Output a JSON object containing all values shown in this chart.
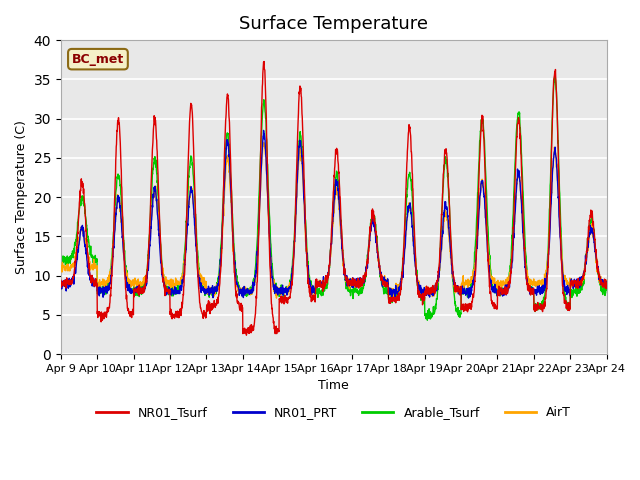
{
  "title": "Surface Temperature",
  "ylabel": "Surface Temperature (C)",
  "xlabel": "Time",
  "annotation_text": "BC_met",
  "annotation_color": "#8B0000",
  "annotation_bg": "#F5F0C8",
  "annotation_border": "#8B6914",
  "ylim": [
    0,
    40
  ],
  "bg_color": "#E8E8E8",
  "grid_color": "white",
  "series_colors": {
    "NR01_Tsurf": "#DD0000",
    "NR01_PRT": "#0000CC",
    "Arable_Tsurf": "#00CC00",
    "AirT": "#FFA500"
  },
  "x_tick_labels": [
    "Apr 9",
    "Apr 10",
    "Apr 11",
    "Apr 12",
    "Apr 13",
    "Apr 14",
    "Apr 15",
    "Apr 16",
    "Apr 17",
    "Apr 18",
    "Apr 19",
    "Apr 20",
    "Apr 21",
    "Apr 22",
    "Apr 23",
    "Apr 24"
  ],
  "daily_peaks_red": [
    22,
    30,
    30,
    32,
    33,
    37,
    34,
    26,
    18,
    29,
    26,
    30,
    30,
    36,
    18
  ],
  "daily_mins_red": [
    9,
    5,
    8,
    5,
    6,
    3,
    7,
    9,
    9,
    7,
    8,
    6,
    8,
    6,
    9
  ],
  "daily_peaks_green": [
    20,
    23,
    25,
    25,
    28,
    32,
    28,
    23,
    18,
    23,
    25,
    30,
    31,
    35,
    17
  ],
  "daily_mins_green": [
    12,
    8,
    8,
    8,
    8,
    8,
    8,
    8,
    8,
    7,
    5,
    8,
    8,
    6,
    8
  ],
  "daily_peaks_blue": [
    16,
    20,
    21,
    21,
    27,
    28,
    27,
    22,
    17,
    19,
    19,
    22,
    23,
    26,
    16
  ],
  "daily_mins_blue": [
    9,
    8,
    8,
    8,
    8,
    8,
    8,
    9,
    9,
    8,
    8,
    8,
    8,
    8,
    9
  ],
  "daily_peaks_orange": [
    16,
    20,
    21,
    21,
    25,
    27,
    26,
    21,
    17,
    19,
    18,
    22,
    23,
    26,
    16
  ],
  "daily_mins_orange": [
    11,
    9,
    9,
    9,
    8,
    8,
    8,
    9,
    9,
    8,
    8,
    9,
    9,
    9,
    9
  ],
  "peak_hour": 0.58,
  "points_per_day": 144
}
